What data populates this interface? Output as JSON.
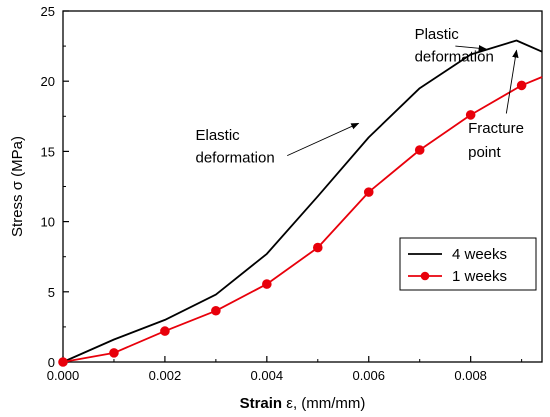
{
  "chart_data": {
    "type": "line",
    "xlabel_bold": "Strain",
    "xlabel_rest": " ε,  (mm/mm)",
    "ylabel": "Stress σ (MPa)",
    "xlim": [
      0,
      0.0094
    ],
    "ylim": [
      0,
      25
    ],
    "x_ticks": [
      "0.000",
      "0.002",
      "0.004",
      "0.006",
      "0.008"
    ],
    "x_tick_values": [
      0,
      0.002,
      0.004,
      0.006,
      0.008
    ],
    "y_ticks": [
      "0",
      "5",
      "10",
      "15",
      "20",
      "25"
    ],
    "y_tick_values": [
      0,
      5,
      10,
      15,
      20,
      25
    ],
    "grid": false,
    "legend_position": "lower-right",
    "series": [
      {
        "name": "4 weeks",
        "color": "#000000",
        "marker": "none",
        "x": [
          0,
          0.001,
          0.002,
          0.003,
          0.004,
          0.005,
          0.006,
          0.007,
          0.008,
          0.0089,
          0.0094
        ],
        "y": [
          0,
          1.6,
          3.0,
          4.8,
          7.7,
          11.8,
          16.0,
          19.5,
          21.9,
          22.9,
          22.1
        ]
      },
      {
        "name": "1 weeks",
        "color": "#e8000b",
        "marker": "circle",
        "x": [
          0,
          0.001,
          0.002,
          0.003,
          0.004,
          0.005,
          0.006,
          0.007,
          0.008,
          0.009,
          0.0094
        ],
        "y": [
          0,
          0.65,
          2.2,
          3.65,
          5.55,
          8.15,
          12.1,
          15.1,
          17.6,
          19.7,
          20.3
        ],
        "marker_count": 10
      }
    ],
    "annotations": [
      {
        "lines": [
          "Plastic",
          "deformation"
        ],
        "text_x": 0.0069,
        "text_y": [
          23.0,
          21.4
        ],
        "arrow_from": [
          0.0077,
          22.5
        ],
        "arrow_to": [
          0.0083,
          22.3
        ]
      },
      {
        "lines": [
          "Elastic",
          "deformation"
        ],
        "text_x": 0.0026,
        "text_y": [
          15.8,
          14.2
        ],
        "arrow_from": [
          0.0044,
          14.7
        ],
        "arrow_to": [
          0.0058,
          17.0
        ]
      },
      {
        "lines": [
          "Fracture",
          "point"
        ],
        "text_x": 0.00795,
        "text_y": [
          16.3,
          14.6
        ],
        "arrow_from": [
          0.0087,
          17.7
        ],
        "arrow_to": [
          0.0089,
          22.2
        ]
      }
    ]
  }
}
